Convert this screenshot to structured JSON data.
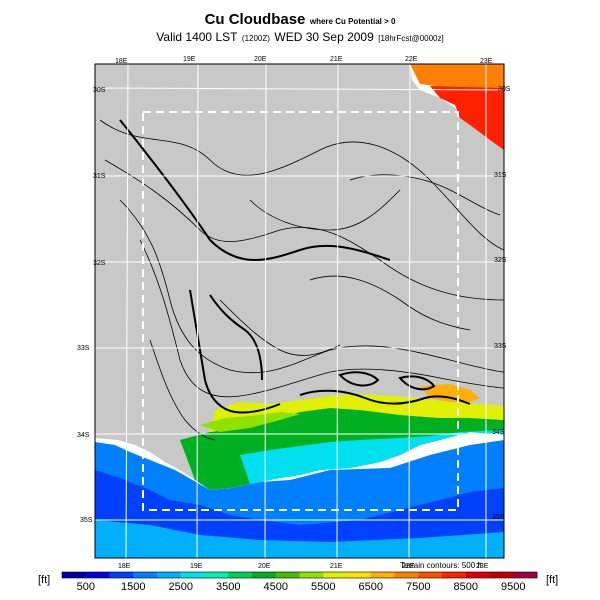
{
  "header": {
    "title_main": "Cu Cloudbase",
    "title_sub": "where Cu Potential > 0",
    "valid_prefix": "Valid 1400 LST",
    "valid_utc": "(1200Z)",
    "valid_date": "WED 30 Sep 2009",
    "forecast": "[18hrFcst@0000z]"
  },
  "map": {
    "lon_labels_top": [
      "18E",
      "19E",
      "20E",
      "21E",
      "22E",
      "23E"
    ],
    "lon_labels_bottom": [
      "18E",
      "19E",
      "20E",
      "21E",
      "22E",
      "23E"
    ],
    "lat_labels_left": [
      "30S",
      "31S",
      "32S",
      "33S",
      "34S",
      "35S"
    ],
    "lat_labels_right": [
      "30S",
      "31S",
      "32S",
      "33S",
      "34S",
      "35S"
    ],
    "terrain_note": "Terrain contours: 500 ft",
    "land_color": "#c8c8c8"
  },
  "colorbar": {
    "unit_left": "[ft]",
    "unit_right": "[ft]",
    "tick_labels": [
      "500",
      "1500",
      "2500",
      "3500",
      "4500",
      "5500",
      "6500",
      "7500",
      "8500",
      "9500"
    ],
    "colors": [
      "#0000a0",
      "#0000e0",
      "#0040ff",
      "#0080ff",
      "#00b0ff",
      "#00e0f0",
      "#00f0b0",
      "#00d050",
      "#00b020",
      "#40c000",
      "#90e000",
      "#e0f000",
      "#ffe000",
      "#ffb000",
      "#ff8000",
      "#ff5000",
      "#ff2000",
      "#e00000",
      "#c00000",
      "#a00040"
    ]
  }
}
